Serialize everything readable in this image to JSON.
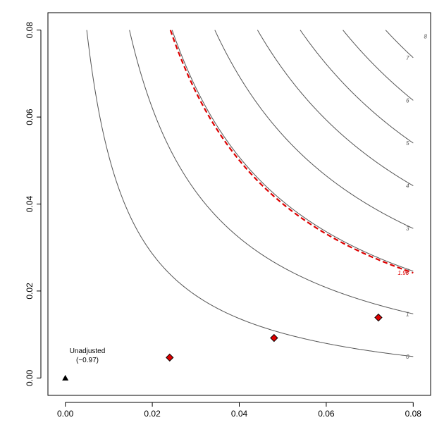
{
  "chart_data": {
    "type": "contour",
    "title": "",
    "xlabel": "",
    "ylabel": "",
    "xlim": [
      -0.004,
      0.084
    ],
    "ylim": [
      -0.004,
      0.084
    ],
    "x_ticks": [
      "0.00",
      "0.02",
      "0.04",
      "0.06",
      "0.08"
    ],
    "y_ticks": [
      "0.00",
      "0.02",
      "0.04",
      "0.06",
      "0.08"
    ],
    "grid": false,
    "colors": {
      "contour": "#555555",
      "threshold": "#dd0000",
      "point_fill": "#dd0000",
      "axis": "#000000"
    },
    "contour_function": "z = -0.97 + 5.85*(x + y) + 1200*x*y",
    "contours": [
      {
        "level": 0,
        "label": "0"
      },
      {
        "level": 1,
        "label": "1"
      },
      {
        "level": 2,
        "label": "2"
      },
      {
        "level": 3,
        "label": "3"
      },
      {
        "level": 4,
        "label": "4"
      },
      {
        "level": 5,
        "label": "5"
      },
      {
        "level": 6,
        "label": "6"
      },
      {
        "level": 7,
        "label": "7"
      },
      {
        "level": 8,
        "label": "8"
      }
    ],
    "threshold_contour": {
      "level": 1.96,
      "label": "1.96",
      "style": "dashed"
    },
    "points": [
      {
        "x": 0.0,
        "y": 0.0,
        "shape": "triangle",
        "label": "Unadjusted",
        "label2": "(−0.97)"
      },
      {
        "x": 0.024,
        "y": 0.0047,
        "shape": "diamond"
      },
      {
        "x": 0.048,
        "y": 0.0092,
        "shape": "diamond"
      },
      {
        "x": 0.072,
        "y": 0.0139,
        "shape": "diamond"
      }
    ]
  }
}
